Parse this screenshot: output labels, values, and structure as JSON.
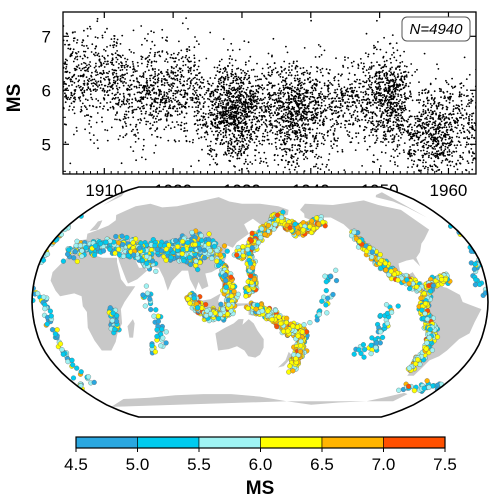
{
  "chart_data": [
    {
      "type": "scatter",
      "ylabel": "MS",
      "xlim": [
        1904,
        1964
      ],
      "ylim": [
        4.45,
        7.45
      ],
      "x_ticks": [
        "1910",
        "1920",
        "1930",
        "1940",
        "1950",
        "1960"
      ],
      "y_ticks": [
        "5",
        "6",
        "7"
      ],
      "annotation": "N=4940",
      "n_points": 4940,
      "point_color": "#000000",
      "density_summary": [
        {
          "period": "1904-1912",
          "mean_ms": 6.2
        },
        {
          "period": "1912-1924",
          "mean_ms": 6.0
        },
        {
          "period": "1924-1934",
          "mean_ms": 5.6
        },
        {
          "period": "1934-1944",
          "mean_ms": 5.6
        },
        {
          "period": "1944-1954",
          "mean_ms": 5.8
        },
        {
          "period": "1954-1964",
          "mean_ms": 5.3
        }
      ]
    },
    {
      "type": "map",
      "projection": "Robinson",
      "ocean_color": "#ffffff",
      "land_color": "#c8c8c8",
      "colorbar": {
        "label": "MS",
        "ticks": [
          "4.5",
          "5.0",
          "5.5",
          "6.0",
          "6.5",
          "7.0",
          "7.5"
        ],
        "bins": [
          {
            "from": 4.5,
            "to": 5.0,
            "color": "#2aa7e0"
          },
          {
            "from": 5.0,
            "to": 5.5,
            "color": "#00cbef"
          },
          {
            "from": 5.5,
            "to": 6.0,
            "color": "#9ff3f3"
          },
          {
            "from": 6.0,
            "to": 6.5,
            "color": "#ffff00"
          },
          {
            "from": 6.5,
            "to": 7.0,
            "color": "#ffb400"
          },
          {
            "from": 7.0,
            "to": 7.5,
            "color": "#ff5000"
          }
        ]
      }
    }
  ]
}
